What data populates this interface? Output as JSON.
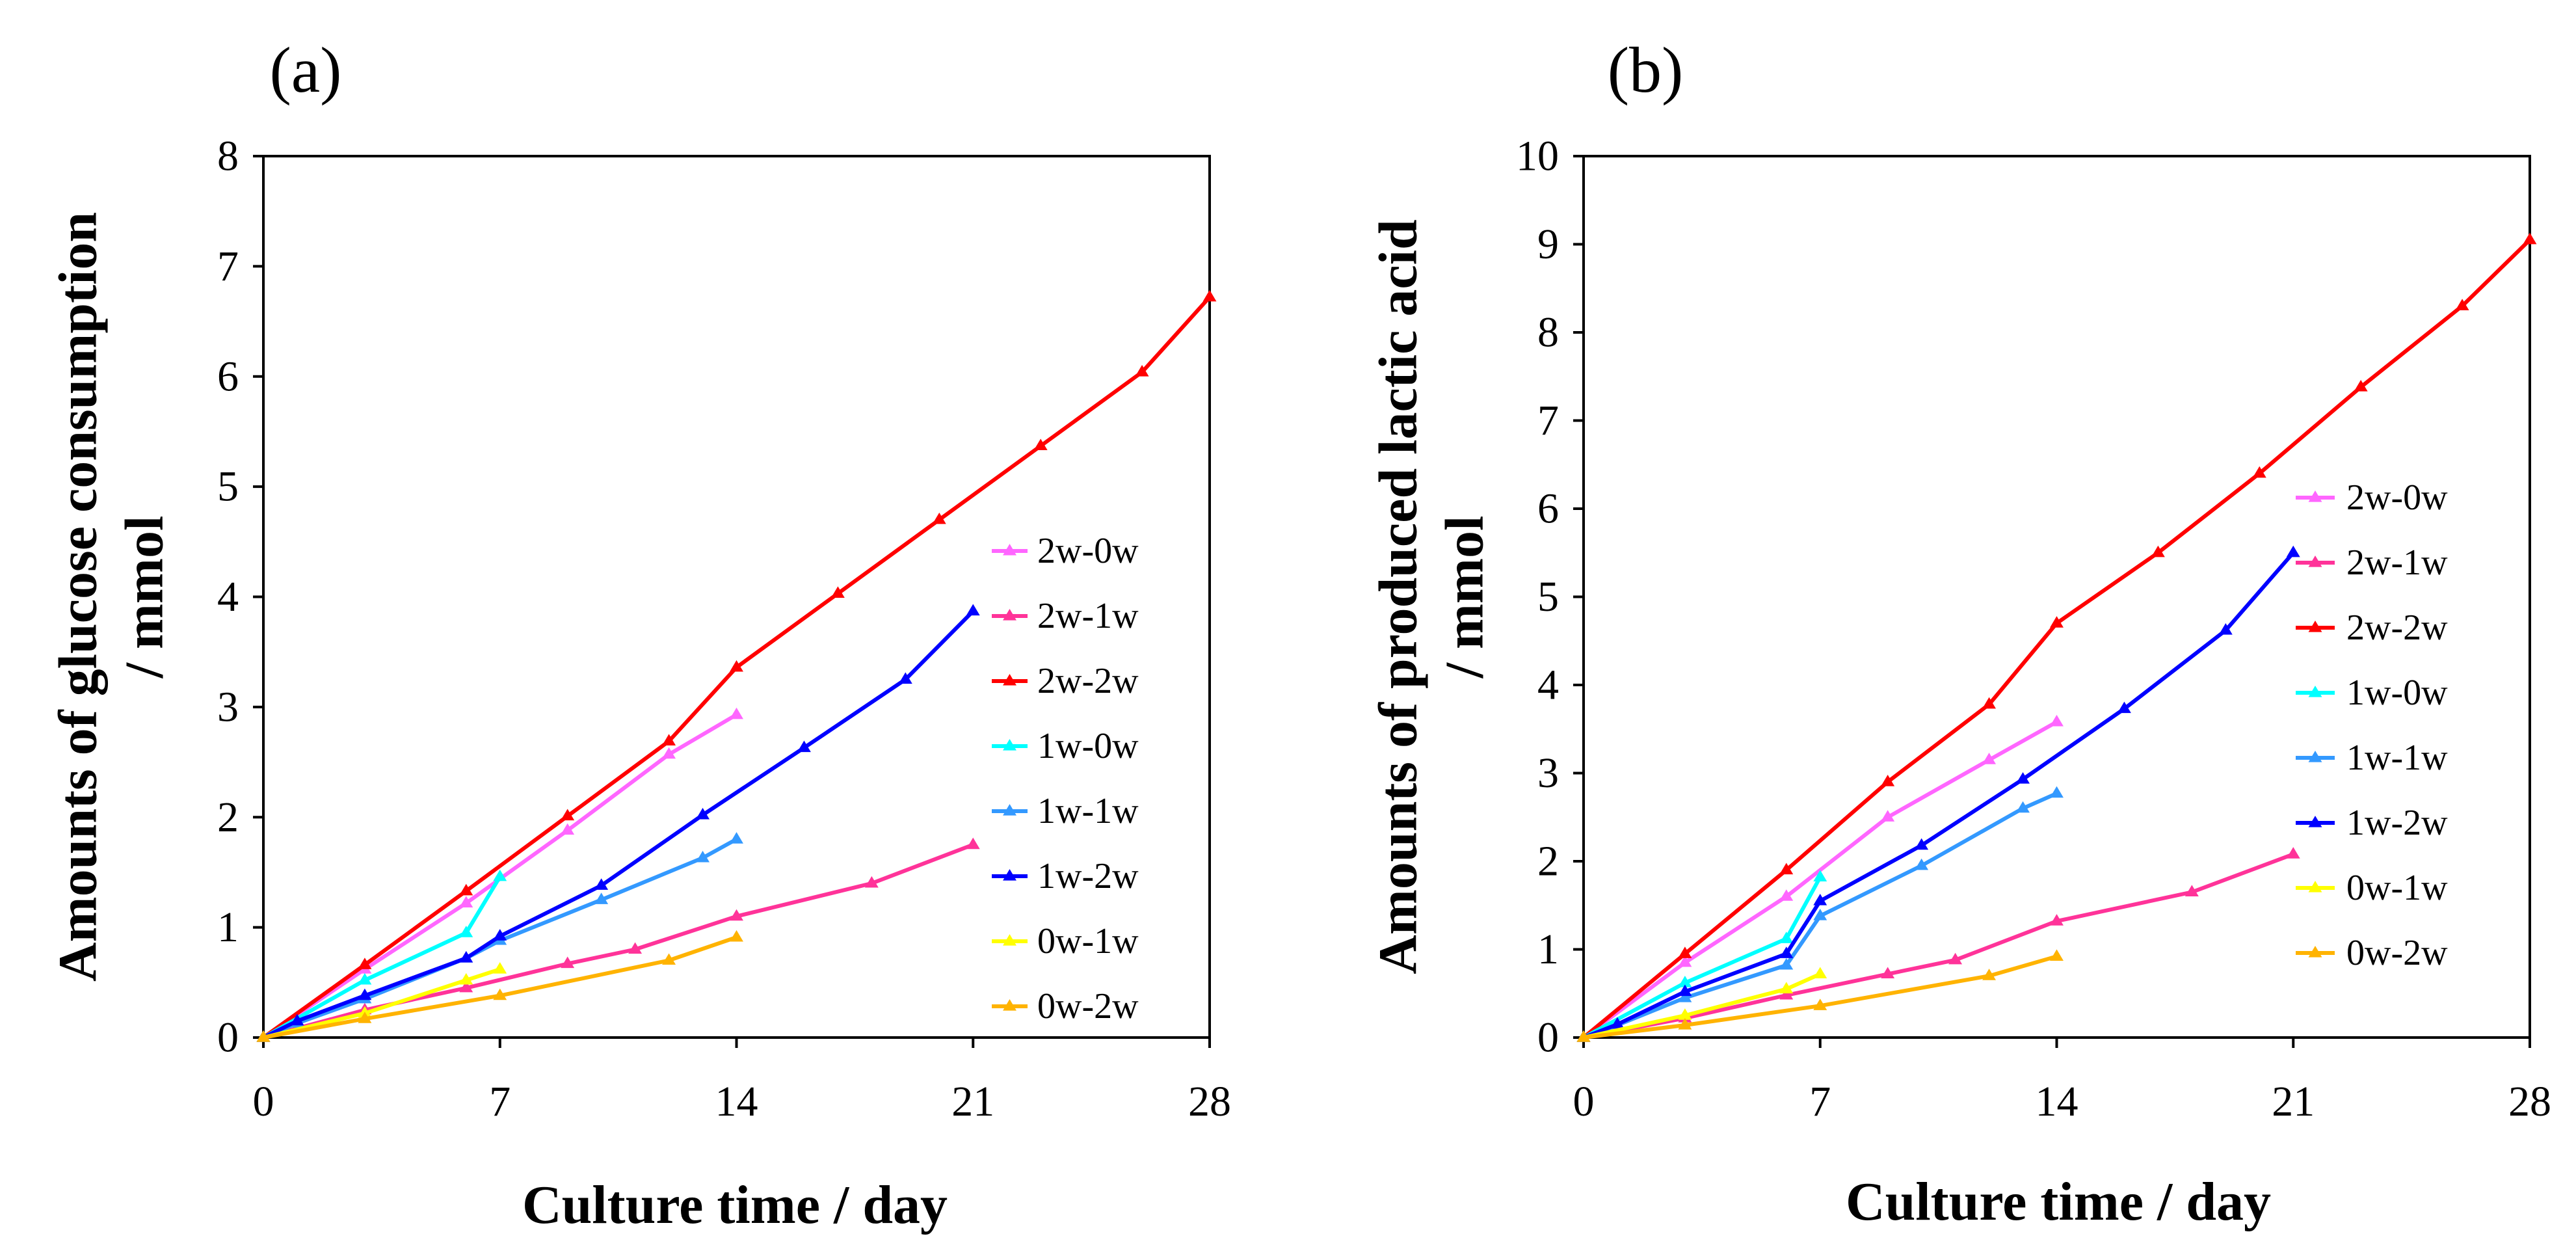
{
  "chart_data": [
    {
      "type": "line",
      "panel_label": "(a)",
      "xlabel": "Culture time / day",
      "ylabel": "Amounts of glucose consumption",
      "ylabel_unit": "/ mmol",
      "xlim": [
        0,
        28
      ],
      "ylim": [
        0,
        8
      ],
      "xticks": [
        "0",
        "7",
        "14",
        "21",
        "28"
      ],
      "yticks": [
        "0",
        "1",
        "2",
        "3",
        "4",
        "5",
        "6",
        "7",
        "8"
      ],
      "grid": false,
      "legend_position": "right",
      "series": [
        {
          "name": "2w-0w",
          "color": "#ff66ff",
          "x": [
            0,
            3,
            6,
            9,
            12,
            14
          ],
          "y": [
            0,
            0.62,
            1.22,
            1.88,
            2.57,
            2.93
          ]
        },
        {
          "name": "2w-1w",
          "color": "#ff3399",
          "x": [
            0,
            3,
            6,
            9,
            11,
            14,
            18,
            21
          ],
          "y": [
            0,
            0.25,
            0.45,
            0.67,
            0.8,
            1.1,
            1.4,
            1.75
          ]
        },
        {
          "name": "2w-2w",
          "color": "#ff0000",
          "x": [
            0,
            3,
            6,
            9,
            12,
            14,
            17,
            20,
            23,
            26,
            28
          ],
          "y": [
            0,
            0.66,
            1.33,
            2.01,
            2.69,
            3.36,
            4.03,
            4.7,
            5.37,
            6.04,
            6.72
          ]
        },
        {
          "name": "1w-0w",
          "color": "#00ffff",
          "x": [
            0,
            3,
            6,
            7
          ],
          "y": [
            0,
            0.52,
            0.95,
            1.46
          ]
        },
        {
          "name": "1w-1w",
          "color": "#3399ff",
          "x": [
            0,
            1,
            3,
            6,
            7,
            10,
            13,
            14
          ],
          "y": [
            0,
            0.13,
            0.35,
            0.72,
            0.88,
            1.25,
            1.63,
            1.8
          ]
        },
        {
          "name": "1w-2w",
          "color": "#0000ff",
          "x": [
            0,
            1,
            3,
            6,
            7,
            10,
            13,
            16,
            19,
            21
          ],
          "y": [
            0,
            0.15,
            0.38,
            0.72,
            0.92,
            1.38,
            2.02,
            2.63,
            3.25,
            3.87
          ]
        },
        {
          "name": "0w-1w",
          "color": "#ffff00",
          "x": [
            0,
            3,
            6,
            7
          ],
          "y": [
            0,
            0.22,
            0.52,
            0.62
          ]
        },
        {
          "name": "0w-2w",
          "color": "#ffb300",
          "x": [
            0,
            3,
            7,
            12,
            14
          ],
          "y": [
            0,
            0.17,
            0.38,
            0.7,
            0.91
          ]
        }
      ]
    },
    {
      "type": "line",
      "panel_label": "(b)",
      "xlabel": "Culture time / day",
      "ylabel": "Amounts of produced lactic acid",
      "ylabel_unit": "/ mmol",
      "xlim": [
        0,
        28
      ],
      "ylim": [
        0,
        10
      ],
      "xticks": [
        "0",
        "7",
        "14",
        "21",
        "28"
      ],
      "yticks": [
        "0",
        "1",
        "2",
        "3",
        "4",
        "5",
        "6",
        "7",
        "8",
        "9",
        "10"
      ],
      "grid": false,
      "legend_position": "right",
      "series": [
        {
          "name": "2w-0w",
          "color": "#ff66ff",
          "x": [
            0,
            3,
            6,
            9,
            12,
            14
          ],
          "y": [
            0,
            0.85,
            1.6,
            2.5,
            3.15,
            3.58
          ]
        },
        {
          "name": "2w-1w",
          "color": "#ff3399",
          "x": [
            0,
            3,
            6,
            9,
            11,
            14,
            18,
            21
          ],
          "y": [
            0,
            0.22,
            0.48,
            0.72,
            0.88,
            1.32,
            1.65,
            2.08
          ]
        },
        {
          "name": "2w-2w",
          "color": "#ff0000",
          "x": [
            0,
            3,
            6,
            9,
            12,
            14,
            17,
            20,
            23,
            26,
            28
          ],
          "y": [
            0,
            0.95,
            1.9,
            2.9,
            3.78,
            4.7,
            5.5,
            6.4,
            7.38,
            8.3,
            9.05
          ]
        },
        {
          "name": "1w-0w",
          "color": "#00ffff",
          "x": [
            0,
            3,
            6,
            7
          ],
          "y": [
            0,
            0.62,
            1.12,
            1.82
          ]
        },
        {
          "name": "1w-1w",
          "color": "#3399ff",
          "x": [
            0,
            1,
            3,
            6,
            7,
            10,
            13,
            14
          ],
          "y": [
            0,
            0.14,
            0.45,
            0.82,
            1.38,
            1.95,
            2.6,
            2.77
          ]
        },
        {
          "name": "1w-2w",
          "color": "#0000ff",
          "x": [
            0,
            1,
            3,
            6,
            7,
            10,
            13,
            16,
            19,
            21
          ],
          "y": [
            0,
            0.15,
            0.52,
            0.95,
            1.55,
            2.18,
            2.93,
            3.73,
            4.62,
            5.5
          ]
        },
        {
          "name": "0w-1w",
          "color": "#ffff00",
          "x": [
            0,
            3,
            6,
            7
          ],
          "y": [
            0,
            0.25,
            0.55,
            0.72
          ]
        },
        {
          "name": "0w-2w",
          "color": "#ffb300",
          "x": [
            0,
            3,
            7,
            12,
            14
          ],
          "y": [
            0,
            0.14,
            0.36,
            0.7,
            0.92
          ]
        }
      ]
    }
  ]
}
